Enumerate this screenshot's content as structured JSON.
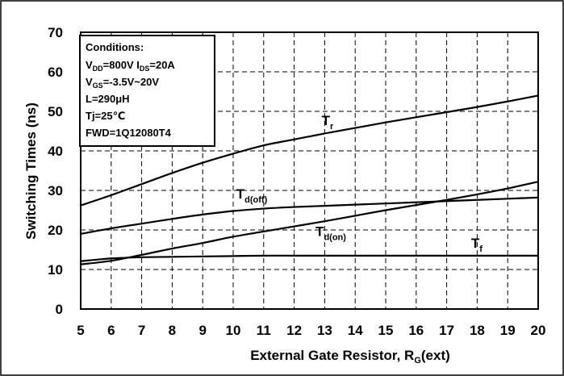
{
  "chart_data": {
    "type": "line",
    "xlabel": {
      "main": "External Gate Resistor, R",
      "sub": "G",
      "tail": "(ext)"
    },
    "ylabel": "Switching Times (ns)",
    "xlim": [
      5,
      20
    ],
    "ylim": [
      0,
      70
    ],
    "x_ticks": [
      5,
      6,
      7,
      8,
      9,
      10,
      11,
      12,
      13,
      14,
      15,
      16,
      17,
      18,
      19,
      20
    ],
    "y_ticks": [
      0,
      10,
      20,
      30,
      40,
      50,
      60,
      70
    ],
    "grid": true,
    "x": [
      5,
      6,
      7,
      8,
      9,
      10,
      11,
      12,
      13,
      14,
      15,
      16,
      17,
      18,
      19,
      20
    ],
    "series": [
      {
        "name": "Tr",
        "label_main": "T",
        "label_sub": "r",
        "values": [
          26.2,
          28.8,
          31.6,
          34.4,
          37.0,
          39.3,
          41.4,
          42.9,
          44.4,
          45.8,
          47.2,
          48.5,
          49.8,
          51.1,
          52.5,
          54.0
        ],
        "label_at": [
          12.9,
          46.5
        ]
      },
      {
        "name": "Td(off)",
        "label_main": "T",
        "label_sub": "d(off)",
        "values": [
          19.0,
          20.4,
          21.6,
          22.8,
          23.9,
          24.8,
          25.4,
          25.8,
          26.1,
          26.4,
          26.7,
          27.0,
          27.3,
          27.6,
          27.9,
          28.2
        ],
        "label_at": [
          10.1,
          28.0
        ]
      },
      {
        "name": "Td(on)",
        "label_main": "T",
        "label_sub": "d(on)",
        "values": [
          11.3,
          12.2,
          13.7,
          15.3,
          16.7,
          18.3,
          19.6,
          20.9,
          22.2,
          23.6,
          25.0,
          26.3,
          27.6,
          29.0,
          30.5,
          32.2
        ],
        "label_at": [
          12.7,
          18.5
        ]
      },
      {
        "name": "Tf",
        "label_main": "T",
        "label_sub": "f",
        "values": [
          12.1,
          12.8,
          13.1,
          13.2,
          13.3,
          13.4,
          13.5,
          13.5,
          13.5,
          13.5,
          13.5,
          13.5,
          13.5,
          13.5,
          13.5,
          13.5
        ],
        "label_at": [
          17.8,
          15.5
        ]
      }
    ],
    "conditions": {
      "title": "Conditions:",
      "lines": [
        [
          {
            "t": "V"
          },
          {
            "t": "DD",
            "sub": true
          },
          {
            "t": "=800V  I"
          },
          {
            "t": "DS",
            "sub": true
          },
          {
            "t": "=20A"
          }
        ],
        [
          {
            "t": "V"
          },
          {
            "t": "GS",
            "sub": true
          },
          {
            "t": "=-3.5V~20V"
          }
        ],
        [
          {
            "t": "L=290μH"
          }
        ],
        [
          {
            "t": "Tj=25℃"
          }
        ],
        [
          {
            "t": "FWD=1Q12080T4"
          }
        ]
      ]
    }
  },
  "colors": {
    "line": "#000000",
    "grid": "#000000",
    "background": "#ffffff"
  }
}
